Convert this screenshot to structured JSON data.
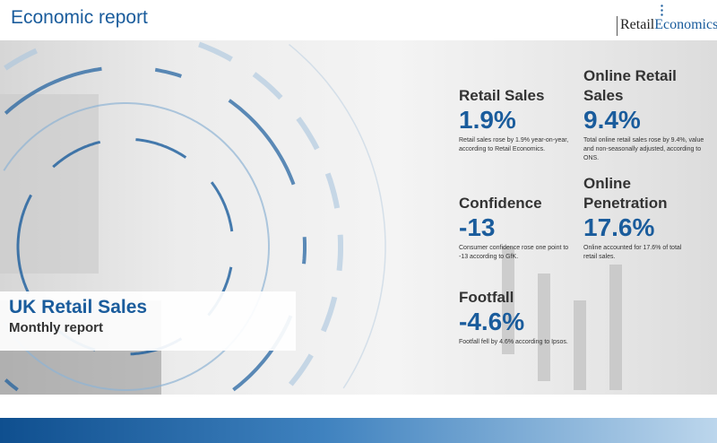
{
  "header": {
    "title": "Economic report",
    "logo_text_1": "Retail",
    "logo_text_2": "Economics"
  },
  "banner": {
    "title": "UK Retail Sales",
    "subtitle": "Monthly report"
  },
  "stats": [
    {
      "heading": "Retail Sales",
      "value": "1.9%",
      "description": "Retail sales rose by 1.9% year-on-year, according to Retail Economics."
    },
    {
      "heading": "Online Retail Sales",
      "value": "9.4%",
      "description": "Total online retail sales rose by 9.4%, value and non-seasonally adjusted, according to ONS."
    },
    {
      "heading": "Confidence",
      "value": "-13",
      "description": "Consumer confidence rose one point to -13 according to GfK."
    },
    {
      "heading": "Online Penetration",
      "value": "17.6%",
      "description": "Online accounted for 17.6% of total retail sales."
    },
    {
      "heading": "Footfall",
      "value": "-4.6%",
      "description": "Footfall fell by 4.6% according to Ipsos."
    }
  ],
  "colors": {
    "accent": "#1a5c9c",
    "footer_dark": "#0f4f8f",
    "footer_light": "#bcd6ec"
  }
}
